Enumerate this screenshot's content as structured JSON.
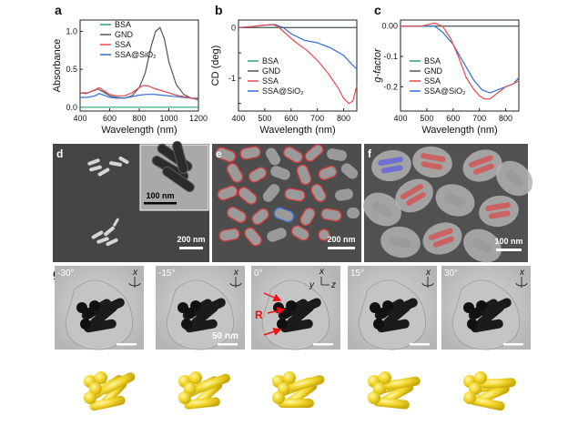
{
  "panels": {
    "a": "a",
    "b": "b",
    "c": "c",
    "d": "d",
    "e": "e",
    "f": "f",
    "g": "g"
  },
  "legend": [
    "BSA",
    "GND",
    "SSA",
    "SSA@SiO₂"
  ],
  "series_colors": {
    "BSA": "#2aa86b",
    "GND": "#555555",
    "SSA": "#e8484d",
    "SSA@SiO₂": "#2d6fd6"
  },
  "scalebars": {
    "d_main": "200 nm",
    "d_inset": "100 nm",
    "e": "200 nm",
    "f": "100 nm",
    "g": "50 nm"
  },
  "angles": [
    "-30°",
    "-15°",
    "0°",
    "15°",
    "30°"
  ],
  "axis_letters": {
    "x": "x",
    "y": "y",
    "z": "z"
  },
  "r_label": "R",
  "chart_data": [
    {
      "panel": "a",
      "type": "line",
      "xlabel": "Wavelength (nm)",
      "ylabel": "Absorbance",
      "xlim": [
        400,
        1200
      ],
      "ylim": [
        -0.05,
        1.15
      ],
      "xticks": [
        400,
        600,
        800,
        1000,
        1200
      ],
      "yticks": [
        0.0,
        0.5,
        1.0
      ],
      "ytick_labels": [
        "0.0",
        "0.5",
        "1.0"
      ],
      "series": [
        {
          "name": "BSA",
          "x": [
            400,
            600,
            800,
            1000,
            1200
          ],
          "y": [
            0.0,
            0.0,
            0.0,
            0.0,
            0.0
          ]
        },
        {
          "name": "GND",
          "x": [
            400,
            440,
            480,
            520,
            560,
            600,
            650,
            700,
            750,
            800,
            840,
            880,
            910,
            940,
            970,
            1000,
            1050,
            1100,
            1150,
            1200
          ],
          "y": [
            0.19,
            0.18,
            0.21,
            0.24,
            0.2,
            0.15,
            0.13,
            0.12,
            0.15,
            0.26,
            0.45,
            0.8,
            1.0,
            1.05,
            0.9,
            0.6,
            0.3,
            0.17,
            0.12,
            0.1
          ]
        },
        {
          "name": "SSA",
          "x": [
            400,
            450,
            500,
            530,
            560,
            600,
            650,
            700,
            750,
            800,
            830,
            860,
            900,
            950,
            1000,
            1050,
            1100,
            1150,
            1200
          ],
          "y": [
            0.19,
            0.19,
            0.23,
            0.26,
            0.22,
            0.17,
            0.15,
            0.15,
            0.19,
            0.26,
            0.29,
            0.28,
            0.25,
            0.22,
            0.19,
            0.16,
            0.14,
            0.12,
            0.11
          ]
        },
        {
          "name": "SSA@SiO₂",
          "x": [
            400,
            450,
            500,
            530,
            560,
            600,
            650,
            700,
            750,
            800,
            850,
            900,
            950,
            1000,
            1050,
            1100,
            1150,
            1200
          ],
          "y": [
            0.13,
            0.13,
            0.15,
            0.18,
            0.16,
            0.13,
            0.12,
            0.12,
            0.14,
            0.16,
            0.17,
            0.17,
            0.16,
            0.15,
            0.14,
            0.13,
            0.12,
            0.12
          ]
        }
      ]
    },
    {
      "panel": "b",
      "type": "line",
      "xlabel": "Wavelength (nm)",
      "ylabel": "CD (deg)",
      "xlim": [
        400,
        850
      ],
      "ylim": [
        -1.65,
        0.15
      ],
      "xticks": [
        400,
        500,
        600,
        700,
        800
      ],
      "yticks": [
        0,
        -0.5,
        -1.0,
        -1.5
      ],
      "ytick_labels": [
        "0",
        "",
        "-1",
        ""
      ],
      "series": [
        {
          "name": "BSA",
          "x": [
            400,
            850
          ],
          "y": [
            0.0,
            0.0
          ]
        },
        {
          "name": "GND",
          "x": [
            400,
            850
          ],
          "y": [
            0.0,
            0.0
          ]
        },
        {
          "name": "SSA",
          "x": [
            400,
            450,
            500,
            530,
            550,
            580,
            620,
            660,
            700,
            740,
            780,
            800,
            820,
            835,
            850
          ],
          "y": [
            0.0,
            0.02,
            0.05,
            0.06,
            0.02,
            -0.12,
            -0.3,
            -0.45,
            -0.65,
            -0.9,
            -1.2,
            -1.4,
            -1.5,
            -1.45,
            -1.15
          ]
        },
        {
          "name": "SSA@SiO₂",
          "x": [
            400,
            450,
            500,
            540,
            570,
            600,
            650,
            700,
            750,
            800,
            830,
            850
          ],
          "y": [
            0.0,
            0.02,
            0.05,
            0.06,
            0.0,
            -0.12,
            -0.25,
            -0.3,
            -0.4,
            -0.55,
            -0.72,
            -0.82
          ]
        }
      ]
    },
    {
      "panel": "c",
      "type": "line",
      "xlabel": "Wavelength (nm)",
      "ylabel": "g-factor",
      "xlim": [
        400,
        850
      ],
      "ylim": [
        -0.28,
        0.02
      ],
      "xticks": [
        400,
        500,
        600,
        700,
        800
      ],
      "yticks": [
        0.0,
        -0.1,
        -0.2
      ],
      "ytick_labels": [
        "0.00",
        "-0.1",
        "-0.2"
      ],
      "series": [
        {
          "name": "BSA",
          "x": [
            400,
            850
          ],
          "y": [
            0.0,
            0.0
          ]
        },
        {
          "name": "GND",
          "x": [
            400,
            850
          ],
          "y": [
            0.0,
            0.0
          ]
        },
        {
          "name": "SSA",
          "x": [
            400,
            480,
            530,
            560,
            590,
            620,
            650,
            680,
            700,
            720,
            740,
            770,
            800,
            830,
            850
          ],
          "y": [
            0.0,
            0.0,
            0.01,
            0.0,
            -0.04,
            -0.1,
            -0.17,
            -0.21,
            -0.23,
            -0.24,
            -0.24,
            -0.22,
            -0.2,
            -0.19,
            -0.18
          ]
        },
        {
          "name": "SSA@SiO₂",
          "x": [
            400,
            480,
            530,
            560,
            600,
            640,
            680,
            710,
            740,
            770,
            800,
            830,
            850
          ],
          "y": [
            0.0,
            0.0,
            0.0,
            -0.02,
            -0.06,
            -0.12,
            -0.18,
            -0.21,
            -0.22,
            -0.21,
            -0.2,
            -0.19,
            -0.17
          ]
        }
      ]
    }
  ]
}
